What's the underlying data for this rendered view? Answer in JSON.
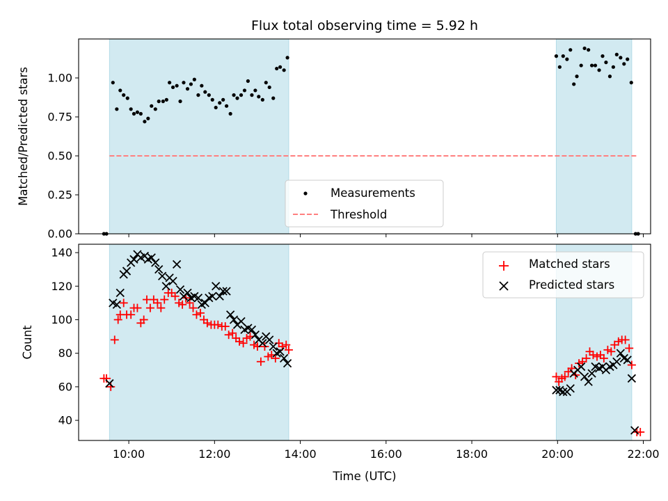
{
  "chart_data": [
    {
      "type": "scatter",
      "title": "Flux total observing time = 5.92 h",
      "xlabel": "",
      "ylabel": "Matched/Predicted stars",
      "xlim": [
        8.83,
        22.17
      ],
      "ylim": [
        0.0,
        1.25
      ],
      "yticks": [
        0.0,
        0.25,
        0.5,
        0.75,
        1.0
      ],
      "ytick_labels": [
        "0.00",
        "0.25",
        "0.50",
        "0.75",
        "1.00"
      ],
      "shaded_intervals": [
        [
          9.55,
          13.73
        ],
        [
          19.97,
          21.73
        ]
      ],
      "shade_color": "#add8e6",
      "legend": {
        "position": "lower center",
        "entries": [
          "Measurements",
          "Threshold"
        ]
      },
      "series": [
        {
          "name": "Measurements",
          "marker": "dot",
          "color": "#000000",
          "x": [
            9.42,
            9.48,
            9.63,
            9.72,
            9.8,
            9.88,
            9.97,
            10.05,
            10.12,
            10.2,
            10.28,
            10.37,
            10.45,
            10.53,
            10.62,
            10.7,
            10.8,
            10.88,
            10.95,
            11.03,
            11.12,
            11.2,
            11.28,
            11.37,
            11.45,
            11.53,
            11.62,
            11.7,
            11.78,
            11.87,
            11.95,
            12.03,
            12.12,
            12.2,
            12.28,
            12.37,
            12.45,
            12.53,
            12.62,
            12.7,
            12.78,
            12.87,
            12.95,
            13.03,
            13.12,
            13.2,
            13.28,
            13.37,
            13.45,
            13.53,
            13.62,
            13.7,
            19.97,
            20.05,
            20.13,
            20.22,
            20.3,
            20.38,
            20.45,
            20.55,
            20.63,
            20.72,
            20.8,
            20.88,
            20.97,
            21.05,
            21.13,
            21.22,
            21.3,
            21.38,
            21.47,
            21.55,
            21.63,
            21.72,
            21.82,
            21.88
          ],
          "y": [
            0.0,
            0.0,
            0.97,
            0.8,
            0.92,
            0.89,
            0.87,
            0.8,
            0.77,
            0.78,
            0.77,
            0.72,
            0.74,
            0.82,
            0.8,
            0.85,
            0.85,
            0.86,
            0.97,
            0.94,
            0.95,
            0.85,
            0.97,
            0.93,
            0.96,
            0.99,
            0.89,
            0.95,
            0.91,
            0.89,
            0.86,
            0.81,
            0.84,
            0.86,
            0.82,
            0.77,
            0.89,
            0.87,
            0.89,
            0.92,
            0.98,
            0.89,
            0.92,
            0.88,
            0.86,
            0.97,
            0.94,
            0.87,
            1.06,
            1.07,
            1.05,
            1.13,
            1.14,
            1.07,
            1.14,
            1.12,
            1.18,
            0.96,
            1.01,
            1.08,
            1.19,
            1.18,
            1.08,
            1.08,
            1.05,
            1.14,
            1.1,
            1.01,
            1.07,
            1.15,
            1.13,
            1.09,
            1.12,
            0.97,
            0.0,
            0.0
          ]
        },
        {
          "name": "Threshold",
          "style": "dashed",
          "color": "#ff7f7f",
          "x": [
            9.55,
            21.85
          ],
          "y": [
            0.5,
            0.5
          ]
        }
      ]
    },
    {
      "type": "scatter",
      "title": "",
      "xlabel": "Time (UTC)",
      "ylabel": "Count",
      "xlim": [
        8.83,
        22.17
      ],
      "ylim": [
        28,
        145
      ],
      "xticks": [
        10,
        12,
        14,
        16,
        18,
        20,
        22
      ],
      "xtick_labels": [
        "10:00",
        "12:00",
        "14:00",
        "16:00",
        "18:00",
        "20:00",
        "22:00"
      ],
      "yticks": [
        40,
        60,
        80,
        100,
        120,
        140
      ],
      "ytick_labels": [
        "40",
        "60",
        "80",
        "100",
        "120",
        "140"
      ],
      "shaded_intervals": [
        [
          9.55,
          13.73
        ],
        [
          19.97,
          21.73
        ]
      ],
      "shade_color": "#add8e6",
      "legend": {
        "position": "upper right",
        "entries": [
          "Matched stars",
          "Predicted stars"
        ]
      },
      "series": [
        {
          "name": "Matched stars",
          "marker": "plus",
          "color": "#ff0000",
          "x": [
            9.42,
            9.48,
            9.58,
            9.67,
            9.75,
            9.8,
            9.88,
            9.95,
            10.05,
            10.12,
            10.2,
            10.28,
            10.35,
            10.42,
            10.5,
            10.58,
            10.67,
            10.75,
            10.83,
            10.92,
            11.0,
            11.08,
            11.17,
            11.25,
            11.33,
            11.42,
            11.5,
            11.58,
            11.67,
            11.75,
            11.83,
            11.92,
            12.0,
            12.08,
            12.17,
            12.25,
            12.33,
            12.42,
            12.5,
            12.58,
            12.67,
            12.75,
            12.83,
            12.92,
            13.0,
            13.08,
            13.17,
            13.25,
            13.33,
            13.42,
            13.5,
            13.58,
            13.67,
            13.73,
            19.97,
            20.03,
            20.1,
            20.17,
            20.25,
            20.33,
            20.42,
            20.5,
            20.58,
            20.67,
            20.75,
            20.83,
            20.92,
            21.0,
            21.08,
            21.17,
            21.25,
            21.33,
            21.42,
            21.5,
            21.58,
            21.67,
            21.73,
            21.85,
            21.93
          ],
          "y": [
            65,
            65,
            60,
            88,
            100,
            103,
            110,
            103,
            103,
            107,
            107,
            98,
            100,
            112,
            107,
            112,
            110,
            107,
            112,
            116,
            116,
            114,
            110,
            109,
            113,
            110,
            107,
            103,
            104,
            100,
            98,
            97,
            97,
            97,
            96,
            96,
            91,
            92,
            89,
            87,
            86,
            89,
            90,
            85,
            84,
            75,
            84,
            78,
            79,
            77,
            86,
            84,
            85,
            82,
            66,
            63,
            65,
            66,
            69,
            71,
            67,
            74,
            75,
            77,
            81,
            79,
            78,
            79,
            77,
            82,
            81,
            85,
            87,
            88,
            88,
            83,
            73,
            33,
            33
          ]
        },
        {
          "name": "Predicted stars",
          "marker": "x",
          "color": "#000000",
          "x": [
            9.55,
            9.63,
            9.72,
            9.8,
            9.88,
            9.95,
            10.05,
            10.12,
            10.2,
            10.28,
            10.37,
            10.45,
            10.53,
            10.62,
            10.7,
            10.78,
            10.87,
            10.95,
            11.03,
            11.12,
            11.2,
            11.28,
            11.37,
            11.45,
            11.53,
            11.62,
            11.7,
            11.78,
            11.87,
            11.95,
            12.03,
            12.12,
            12.2,
            12.28,
            12.37,
            12.45,
            12.53,
            12.62,
            12.7,
            12.78,
            12.87,
            12.95,
            13.03,
            13.12,
            13.2,
            13.28,
            13.37,
            13.45,
            13.53,
            13.62,
            13.7,
            19.97,
            20.05,
            20.13,
            20.22,
            20.3,
            20.38,
            20.47,
            20.55,
            20.63,
            20.72,
            20.8,
            20.88,
            20.97,
            21.05,
            21.13,
            21.22,
            21.3,
            21.38,
            21.47,
            21.55,
            21.63,
            21.73,
            21.8
          ],
          "y": [
            62,
            110,
            109,
            116,
            127,
            129,
            134,
            136,
            139,
            137,
            138,
            136,
            137,
            134,
            130,
            126,
            120,
            125,
            123,
            133,
            118,
            114,
            116,
            113,
            114,
            113,
            109,
            110,
            113,
            114,
            120,
            114,
            117,
            117,
            103,
            100,
            97,
            99,
            94,
            95,
            94,
            91,
            88,
            86,
            90,
            88,
            84,
            80,
            81,
            77,
            74,
            58,
            58,
            57,
            57,
            59,
            68,
            70,
            72,
            66,
            63,
            68,
            72,
            71,
            72,
            70,
            72,
            73,
            75,
            80,
            77,
            76,
            65,
            34
          ]
        }
      ]
    }
  ]
}
